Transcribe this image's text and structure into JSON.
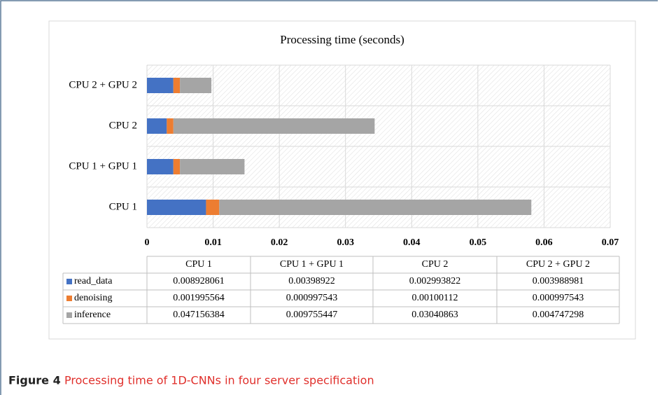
{
  "chart_data": {
    "type": "bar",
    "orientation": "horizontal",
    "stacked": true,
    "title": "Processing time (seconds)",
    "categories": [
      "CPU 1",
      "CPU 1 + GPU 1",
      "CPU 2",
      "CPU 2 + GPU 2"
    ],
    "series": [
      {
        "name": "read_data",
        "color": "#4472c4",
        "values": [
          0.008928061,
          0.00398922,
          0.002993822,
          0.003988981
        ]
      },
      {
        "name": "denoising",
        "color": "#ed7d31",
        "values": [
          0.001995564,
          0.000997543,
          0.00100112,
          0.000997543
        ]
      },
      {
        "name": "inference",
        "color": "#a5a5a5",
        "values": [
          0.047156384,
          0.009755447,
          0.03040863,
          0.004747298
        ]
      }
    ],
    "xlim": [
      0,
      0.07
    ],
    "xticks": [
      0,
      0.01,
      0.02,
      0.03,
      0.04,
      0.05,
      0.06,
      0.07
    ],
    "grid": true
  },
  "caption": {
    "label": "Figure 4",
    "text": "Processing time of 1D-CNNs in four server specification"
  }
}
